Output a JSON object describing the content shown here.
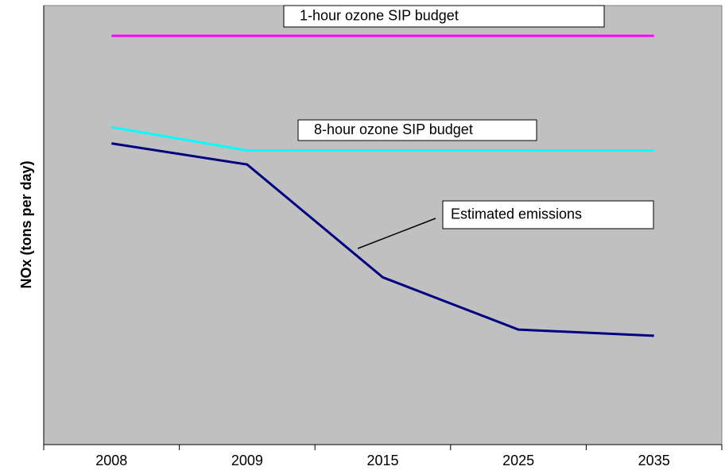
{
  "chart_data": {
    "type": "line",
    "y_label": "NOx (tons per day)",
    "categories": [
      "2008",
      "2009",
      "2015",
      "2025",
      "2035"
    ],
    "ylim": [
      0,
      100
    ],
    "background": "#c0c0c0",
    "series": [
      {
        "name": "1-hour ozone SIP budget",
        "color": "#ff00ff",
        "values": [
          93.1,
          93.1,
          93.1,
          93.1,
          93.1
        ]
      },
      {
        "name": "8-hour ozone SIP budget",
        "color": "#00ffff",
        "values": [
          72.3,
          67.0,
          67.0,
          67.0,
          67.0
        ]
      },
      {
        "name": "Estimated emissions",
        "color": "#000080",
        "values": [
          68.6,
          63.8,
          38.1,
          26.2,
          24.8
        ]
      }
    ]
  }
}
